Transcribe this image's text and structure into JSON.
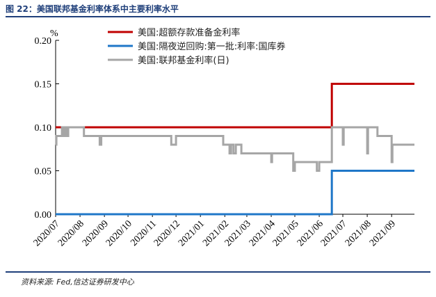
{
  "figure": {
    "title": "图 22：美国联邦基金利率体系中主要利率水平",
    "source": "资料来源: Fed,信达证券研发中心"
  },
  "chart_data": {
    "type": "line",
    "ylabel": "%",
    "ylim": [
      0,
      0.2
    ],
    "yticks": [
      "0.00",
      "0.05",
      "0.10",
      "0.15",
      "0.20"
    ],
    "xlim": [
      "2020-07-01",
      "2021-09-30"
    ],
    "xticks": [
      {
        "date": "2020-07-01",
        "label": "2020/07"
      },
      {
        "date": "2020-08-01",
        "label": "2020/08"
      },
      {
        "date": "2020-09-01",
        "label": "2020/09"
      },
      {
        "date": "2020-10-01",
        "label": "2020/10"
      },
      {
        "date": "2020-11-01",
        "label": "2020/11"
      },
      {
        "date": "2020-12-01",
        "label": "2020/12"
      },
      {
        "date": "2021-01-01",
        "label": "2021/01"
      },
      {
        "date": "2021-02-01",
        "label": "2021/02"
      },
      {
        "date": "2021-03-01",
        "label": "2021/03"
      },
      {
        "date": "2021-04-01",
        "label": "2021/04"
      },
      {
        "date": "2021-05-01",
        "label": "2021/05"
      },
      {
        "date": "2021-06-01",
        "label": "2021/06"
      },
      {
        "date": "2021-07-01",
        "label": "2021/07"
      },
      {
        "date": "2021-08-01",
        "label": "2021/08"
      },
      {
        "date": "2021-09-01",
        "label": "2021/09"
      }
    ],
    "legend_position": "top-right",
    "grid": false,
    "series": [
      {
        "name": "美国:超额存款准备金利率",
        "color": "#c00000",
        "step": true,
        "points": [
          [
            "2020-07-01",
            0.1
          ],
          [
            "2021-06-17",
            0.15
          ],
          [
            "2021-09-30",
            0.15
          ]
        ]
      },
      {
        "name": "美国:隔夜逆回购:第一批:利率:国库券",
        "color": "#1f77c8",
        "step": true,
        "points": [
          [
            "2020-07-01",
            0.0
          ],
          [
            "2021-06-17",
            0.05
          ],
          [
            "2021-09-30",
            0.05
          ]
        ]
      },
      {
        "name": "美国:联邦基金利率(日)",
        "color": "#a6a6a6",
        "step": true,
        "points": [
          [
            "2020-07-01",
            0.08
          ],
          [
            "2020-07-02",
            0.09
          ],
          [
            "2020-07-09",
            0.1
          ],
          [
            "2020-07-11",
            0.09
          ],
          [
            "2020-07-13",
            0.1
          ],
          [
            "2020-07-15",
            0.09
          ],
          [
            "2020-07-17",
            0.1
          ],
          [
            "2020-08-01",
            0.1
          ],
          [
            "2020-08-06",
            0.09
          ],
          [
            "2020-08-25",
            0.09
          ],
          [
            "2020-08-26",
            0.08
          ],
          [
            "2020-08-28",
            0.09
          ],
          [
            "2020-11-24",
            0.09
          ],
          [
            "2020-11-25",
            0.08
          ],
          [
            "2020-12-01",
            0.09
          ],
          [
            "2021-01-06",
            0.09
          ],
          [
            "2021-01-29",
            0.09
          ],
          [
            "2021-01-30",
            0.08
          ],
          [
            "2021-02-06",
            0.08
          ],
          [
            "2021-02-07",
            0.07
          ],
          [
            "2021-02-09",
            0.08
          ],
          [
            "2021-02-12",
            0.07
          ],
          [
            "2021-02-15",
            0.08
          ],
          [
            "2021-02-21",
            0.08
          ],
          [
            "2021-02-22",
            0.07
          ],
          [
            "2021-03-31",
            0.07
          ],
          [
            "2021-04-01",
            0.06
          ],
          [
            "2021-04-02",
            0.07
          ],
          [
            "2021-04-28",
            0.07
          ],
          [
            "2021-04-29",
            0.05
          ],
          [
            "2021-05-01",
            0.06
          ],
          [
            "2021-05-28",
            0.06
          ],
          [
            "2021-05-29",
            0.05
          ],
          [
            "2021-06-01",
            0.06
          ],
          [
            "2021-06-16",
            0.06
          ],
          [
            "2021-06-17",
            0.1
          ],
          [
            "2021-06-30",
            0.1
          ],
          [
            "2021-07-01",
            0.08
          ],
          [
            "2021-07-02",
            0.1
          ],
          [
            "2021-07-31",
            0.1
          ],
          [
            "2021-08-01",
            0.07
          ],
          [
            "2021-08-02",
            0.1
          ],
          [
            "2021-08-13",
            0.1
          ],
          [
            "2021-08-14",
            0.09
          ],
          [
            "2021-08-31",
            0.09
          ],
          [
            "2021-09-01",
            0.06
          ],
          [
            "2021-09-02",
            0.08
          ],
          [
            "2021-09-30",
            0.08
          ]
        ]
      }
    ]
  }
}
